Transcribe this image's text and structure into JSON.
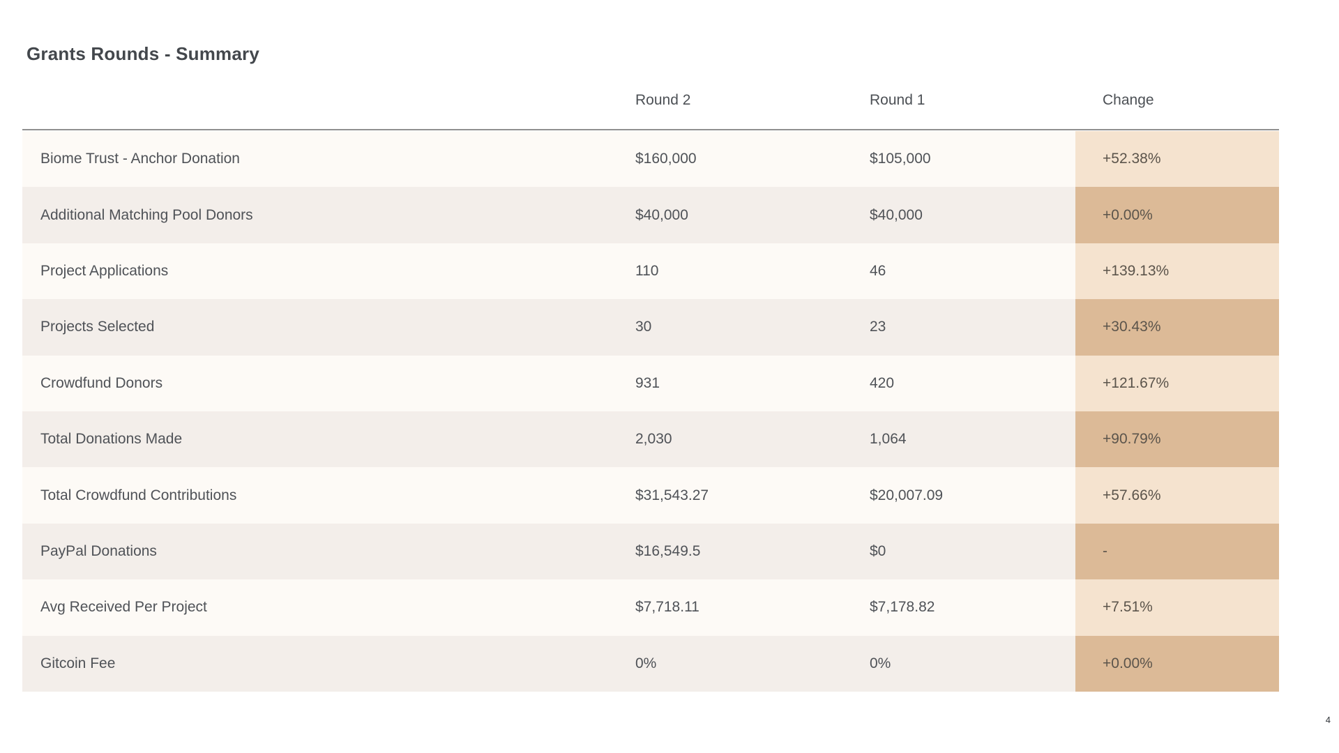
{
  "page": {
    "title": "Grants Rounds - Summary",
    "page_number": "4"
  },
  "table": {
    "header": {
      "metric": "",
      "round2": "Round 2",
      "round1": "Round 1",
      "change": "Change"
    },
    "rows": [
      {
        "label": "Biome Trust - Anchor Donation",
        "round2": "$160,000",
        "round1": "$105,000",
        "change": "+52.38%"
      },
      {
        "label": "Additional Matching Pool Donors",
        "round2": "$40,000",
        "round1": "$40,000",
        "change": "+0.00%"
      },
      {
        "label": "Project Applications",
        "round2": "110",
        "round1": "46",
        "change": "+139.13%"
      },
      {
        "label": "Projects Selected",
        "round2": "30",
        "round1": "23",
        "change": "+30.43%"
      },
      {
        "label": "Crowdfund Donors",
        "round2": "931",
        "round1": "420",
        "change": "+121.67%"
      },
      {
        "label": "Total Donations Made",
        "round2": "2,030",
        "round1": "1,064",
        "change": "+90.79%"
      },
      {
        "label": "Total Crowdfund Contributions",
        "round2": "$31,543.27",
        "round1": "$20,007.09",
        "change": "+57.66%"
      },
      {
        "label": "PayPal Donations",
        "round2": "$16,549.5",
        "round1": "$0",
        "change": "-"
      },
      {
        "label": "Avg Received Per Project",
        "round2": "$7,718.11",
        "round1": "$7,178.82",
        "change": "+7.51%"
      },
      {
        "label": "Gitcoin Fee",
        "round2": "0%",
        "round1": "0%",
        "change": "+0.00%"
      }
    ]
  },
  "theme": {
    "page_bg": "#ffffff",
    "title_color": "#43474c",
    "header_color": "#4c5055",
    "text_color": "#4f5257",
    "change_text_color": "#5b544b",
    "line_color": "#909090",
    "row_odd_bg": "#fdfaf6",
    "row_even_bg": "#f3eeea",
    "change_odd_bg": "#f5e3cf",
    "change_even_bg": "#dcba97",
    "pagenum_color": "#2f3338"
  }
}
